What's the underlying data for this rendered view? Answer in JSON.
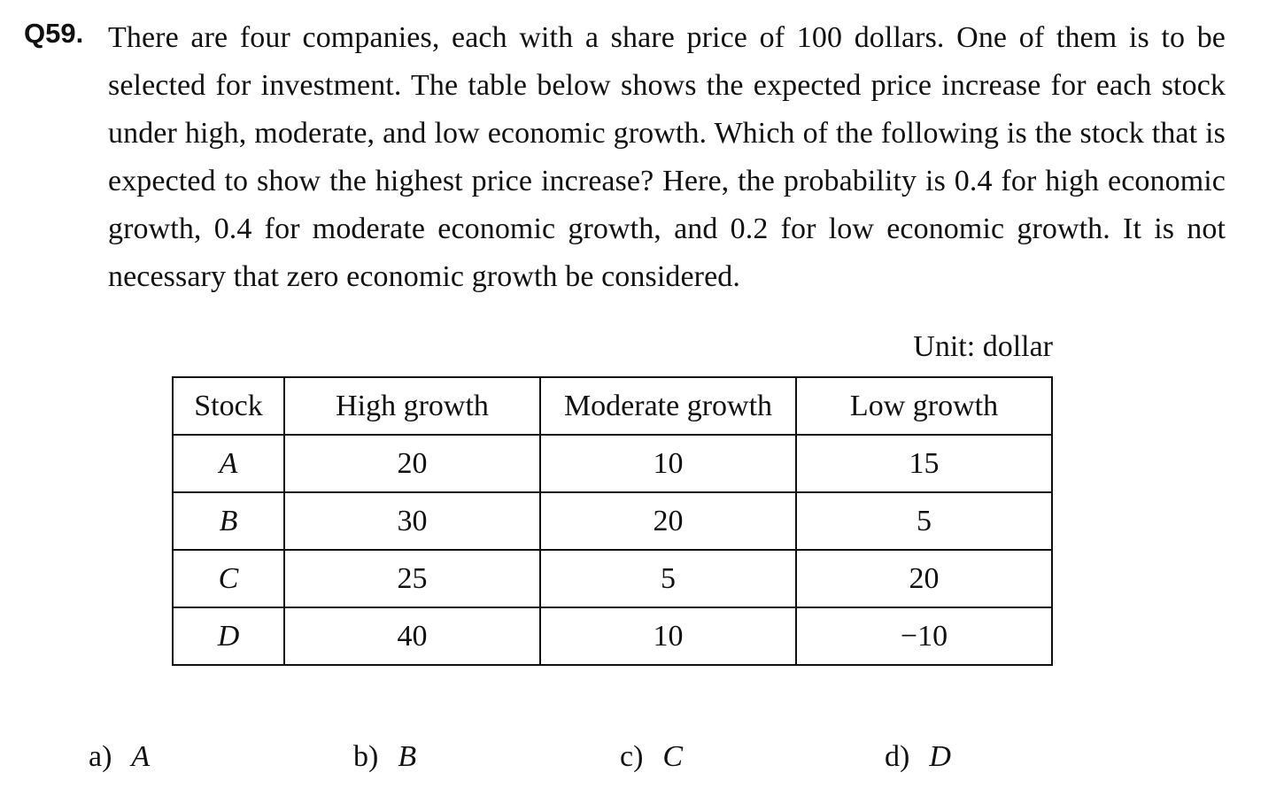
{
  "question": {
    "number": "Q59.",
    "text": "There are four companies, each with a share price of 100 dollars.   One of them is to be selected for investment.   The table below shows the expected price increase for each stock under high, moderate, and low economic growth.   Which of the following is the stock that is expected to show the highest price increase?   Here, the probability is 0.4 for high economic growth, 0.4 for moderate economic growth, and 0.2 for low economic growth.   It is not necessary that zero economic growth be considered."
  },
  "table": {
    "unit": "Unit: dollar",
    "headers": [
      "Stock",
      "High growth",
      "Moderate growth",
      "Low growth"
    ],
    "rows": [
      [
        "A",
        "20",
        "10",
        "15"
      ],
      [
        "B",
        "30",
        "20",
        "5"
      ],
      [
        "C",
        "25",
        "5",
        "20"
      ],
      [
        "D",
        "40",
        "10",
        "−10"
      ]
    ]
  },
  "choices": [
    {
      "letter": "a)",
      "value": "A"
    },
    {
      "letter": "b)",
      "value": "B"
    },
    {
      "letter": "c)",
      "value": "C"
    },
    {
      "letter": "d)",
      "value": "D"
    }
  ]
}
